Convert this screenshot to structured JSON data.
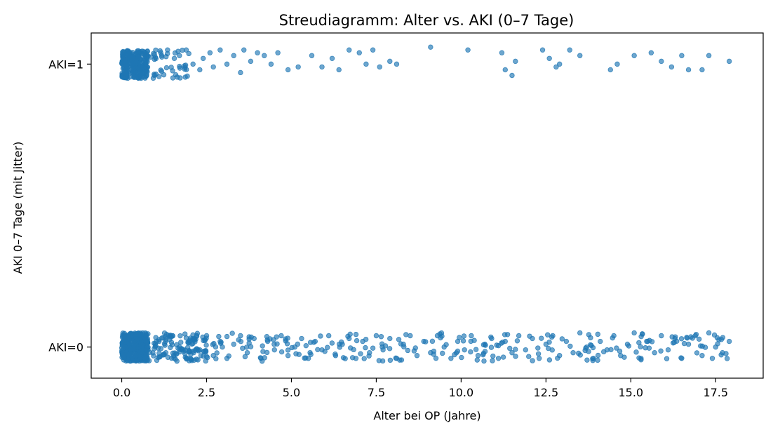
{
  "chart_data": {
    "type": "scatter",
    "title": "Streudiagramm: Alter vs. AKI (0–7 Tage)",
    "xlabel": "Alter bei OP (Jahre)",
    "ylabel": "AKI 0–7 Tage (mit Jitter)",
    "xlim": [
      -0.9,
      18.9
    ],
    "ylim": [
      -0.11,
      1.11
    ],
    "xticks": [
      0.0,
      2.5,
      5.0,
      7.5,
      10.0,
      12.5,
      15.0,
      17.5
    ],
    "xtick_labels": [
      "0.0",
      "2.5",
      "5.0",
      "7.5",
      "10.0",
      "12.5",
      "15.0",
      "17.5"
    ],
    "yticks": [
      0,
      1
    ],
    "ytick_labels": [
      "AKI=0",
      "AKI=1"
    ],
    "grid": false,
    "marker_color": "#1f77b4",
    "jitter_note": "y values are binary (0 or 1) with small random vertical jitter",
    "series": [
      {
        "points_aki1_sparse": [
          [
            1.15,
            1.04
          ],
          [
            1.35,
            1.05
          ],
          [
            1.55,
            1.02
          ],
          [
            1.7,
            1.03
          ],
          [
            1.9,
            1.05
          ],
          [
            2.1,
            1.0
          ],
          [
            2.3,
            0.98
          ],
          [
            2.4,
            1.02
          ],
          [
            2.6,
            1.04
          ],
          [
            2.7,
            0.99
          ],
          [
            2.9,
            1.05
          ],
          [
            3.1,
            1.0
          ],
          [
            3.3,
            1.03
          ],
          [
            3.5,
            0.97
          ],
          [
            3.6,
            1.05
          ],
          [
            3.8,
            1.01
          ],
          [
            4.0,
            1.04
          ],
          [
            4.2,
            1.03
          ],
          [
            4.4,
            1.0
          ],
          [
            4.6,
            1.04
          ],
          [
            4.9,
            0.98
          ],
          [
            5.2,
            0.99
          ],
          [
            5.6,
            1.03
          ],
          [
            5.9,
            0.99
          ],
          [
            6.2,
            1.02
          ],
          [
            6.4,
            0.98
          ],
          [
            6.7,
            1.05
          ],
          [
            7.0,
            1.04
          ],
          [
            7.2,
            1.0
          ],
          [
            7.4,
            1.05
          ],
          [
            7.6,
            0.99
          ],
          [
            7.9,
            1.01
          ],
          [
            8.1,
            1.0
          ],
          [
            9.1,
            1.06
          ],
          [
            10.2,
            1.05
          ],
          [
            11.2,
            1.04
          ],
          [
            11.3,
            0.98
          ],
          [
            11.6,
            1.01
          ],
          [
            11.5,
            0.96
          ],
          [
            12.4,
            1.05
          ],
          [
            12.6,
            1.02
          ],
          [
            12.8,
            0.99
          ],
          [
            12.9,
            1.0
          ],
          [
            13.2,
            1.05
          ],
          [
            13.5,
            1.03
          ],
          [
            14.4,
            0.98
          ],
          [
            14.6,
            1.0
          ],
          [
            15.1,
            1.03
          ],
          [
            15.6,
            1.04
          ],
          [
            15.9,
            1.01
          ],
          [
            16.2,
            0.99
          ],
          [
            16.5,
            1.03
          ],
          [
            16.7,
            0.98
          ],
          [
            17.1,
            0.98
          ],
          [
            17.3,
            1.03
          ],
          [
            17.9,
            1.01
          ]
        ],
        "points_aki0_sparse": [
          [
            1.1,
            0.02
          ],
          [
            1.3,
            -0.02
          ],
          [
            1.5,
            0.04
          ],
          [
            1.7,
            0.0
          ],
          [
            1.9,
            -0.04
          ],
          [
            2.1,
            0.03
          ],
          [
            2.3,
            -0.01
          ],
          [
            2.5,
            0.04
          ],
          [
            2.7,
            -0.03
          ],
          [
            2.9,
            0.02
          ],
          [
            3.1,
            -0.04
          ],
          [
            3.3,
            0.01
          ],
          [
            3.5,
            0.04
          ],
          [
            3.7,
            -0.02
          ],
          [
            3.9,
            0.03
          ],
          [
            4.1,
            -0.04
          ],
          [
            4.3,
            0.02
          ],
          [
            4.5,
            -0.01
          ],
          [
            4.7,
            0.04
          ],
          [
            4.9,
            -0.03
          ],
          [
            5.1,
            0.0
          ],
          [
            5.3,
            0.03
          ],
          [
            5.5,
            -0.04
          ],
          [
            5.7,
            0.02
          ],
          [
            5.9,
            -0.01
          ],
          [
            6.1,
            0.04
          ],
          [
            6.3,
            -0.03
          ],
          [
            6.5,
            0.01
          ],
          [
            6.7,
            0.03
          ],
          [
            6.9,
            -0.04
          ],
          [
            7.1,
            0.02
          ],
          [
            7.3,
            -0.02
          ],
          [
            7.5,
            0.04
          ],
          [
            7.7,
            -0.01
          ],
          [
            7.9,
            0.03
          ],
          [
            8.1,
            -0.04
          ],
          [
            8.3,
            0.01
          ],
          [
            8.5,
            0.04
          ],
          [
            8.7,
            -0.03
          ],
          [
            8.9,
            0.02
          ],
          [
            9.1,
            -0.02
          ],
          [
            9.3,
            0.04
          ],
          [
            9.5,
            0.0
          ],
          [
            9.7,
            -0.04
          ],
          [
            9.9,
            0.02
          ],
          [
            10.1,
            -0.01
          ],
          [
            10.3,
            0.04
          ],
          [
            10.5,
            -0.03
          ],
          [
            10.7,
            0.01
          ],
          [
            10.9,
            0.03
          ],
          [
            11.1,
            -0.04
          ],
          [
            11.3,
            0.02
          ],
          [
            11.5,
            -0.02
          ],
          [
            11.7,
            0.04
          ],
          [
            11.9,
            -0.01
          ],
          [
            12.1,
            0.03
          ],
          [
            12.3,
            -0.04
          ],
          [
            12.5,
            0.01
          ],
          [
            12.7,
            0.04
          ],
          [
            12.9,
            -0.03
          ],
          [
            13.1,
            0.02
          ],
          [
            13.3,
            -0.02
          ],
          [
            13.5,
            0.05
          ],
          [
            13.7,
            0.0
          ],
          [
            13.9,
            -0.04
          ],
          [
            14.1,
            0.02
          ],
          [
            14.3,
            -0.01
          ],
          [
            14.5,
            0.04
          ],
          [
            14.7,
            -0.03
          ],
          [
            14.9,
            0.01
          ],
          [
            15.1,
            0.05
          ],
          [
            15.3,
            -0.04
          ],
          [
            15.5,
            0.02
          ],
          [
            15.7,
            -0.02
          ],
          [
            15.9,
            0.04
          ],
          [
            16.1,
            -0.01
          ],
          [
            16.3,
            0.03
          ],
          [
            16.5,
            -0.04
          ],
          [
            16.7,
            0.01
          ],
          [
            16.9,
            0.04
          ],
          [
            17.1,
            -0.03
          ],
          [
            17.3,
            0.05
          ],
          [
            17.5,
            0.0
          ],
          [
            17.7,
            -0.02
          ],
          [
            17.9,
            0.02
          ]
        ]
      }
    ]
  }
}
